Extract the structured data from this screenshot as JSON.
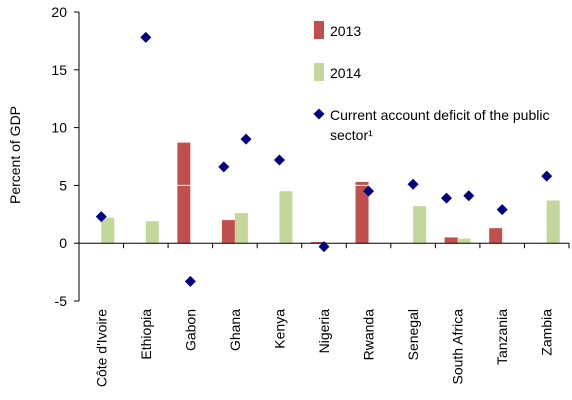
{
  "chart_data": {
    "type": "bar",
    "categories": [
      "Côte d'Ivoire",
      "Ethiopia",
      "Gabon",
      "Ghana",
      "Kenya",
      "Nigeria",
      "Rwanda",
      "Senegal",
      "South Africa",
      "Tanzania",
      "Zambia"
    ],
    "series": [
      {
        "name": "2013",
        "kind": "bar",
        "color": "#c0504d",
        "values": [
          0,
          0,
          8.7,
          2.0,
          0,
          0.1,
          5.3,
          0,
          0.5,
          1.3,
          0
        ]
      },
      {
        "name": "2014",
        "kind": "bar",
        "color": "#c4d79b",
        "values": [
          2.2,
          1.9,
          0,
          2.6,
          4.5,
          0,
          0,
          3.2,
          0.4,
          0,
          3.7
        ]
      },
      {
        "name": "Current account deficit of the public sector¹",
        "kind": "scatter",
        "marker": "diamond",
        "color": "#000080",
        "points": [
          {
            "cat": 0,
            "offset": 0,
            "value": 2.3
          },
          {
            "cat": 1,
            "offset": 0,
            "value": 17.8
          },
          {
            "cat": 2,
            "offset": 0,
            "value": -3.3
          },
          {
            "cat": 3,
            "offset": -0.25,
            "value": 6.6
          },
          {
            "cat": 3,
            "offset": 0.25,
            "value": 9.0
          },
          {
            "cat": 4,
            "offset": 0,
            "value": 7.2
          },
          {
            "cat": 5,
            "offset": 0,
            "value": -0.3
          },
          {
            "cat": 6,
            "offset": 0,
            "value": 4.5
          },
          {
            "cat": 7,
            "offset": 0,
            "value": 5.1
          },
          {
            "cat": 8,
            "offset": -0.25,
            "value": 3.9
          },
          {
            "cat": 8,
            "offset": 0.25,
            "value": 4.1
          },
          {
            "cat": 9,
            "offset": 0,
            "value": 2.9
          },
          {
            "cat": 10,
            "offset": 0,
            "value": 5.8
          }
        ]
      }
    ],
    "ylabel": "Percent of GDP",
    "xlabel": "",
    "ylim": [
      -5,
      20
    ],
    "yticks": [
      -5,
      0,
      5,
      10,
      15,
      20
    ],
    "legend_position": "top-right",
    "legend": [
      {
        "label": "2013",
        "series": 0
      },
      {
        "label": "2014",
        "series": 1
      },
      {
        "label": "Current account deficit of the public sector¹",
        "series": 2
      }
    ]
  }
}
